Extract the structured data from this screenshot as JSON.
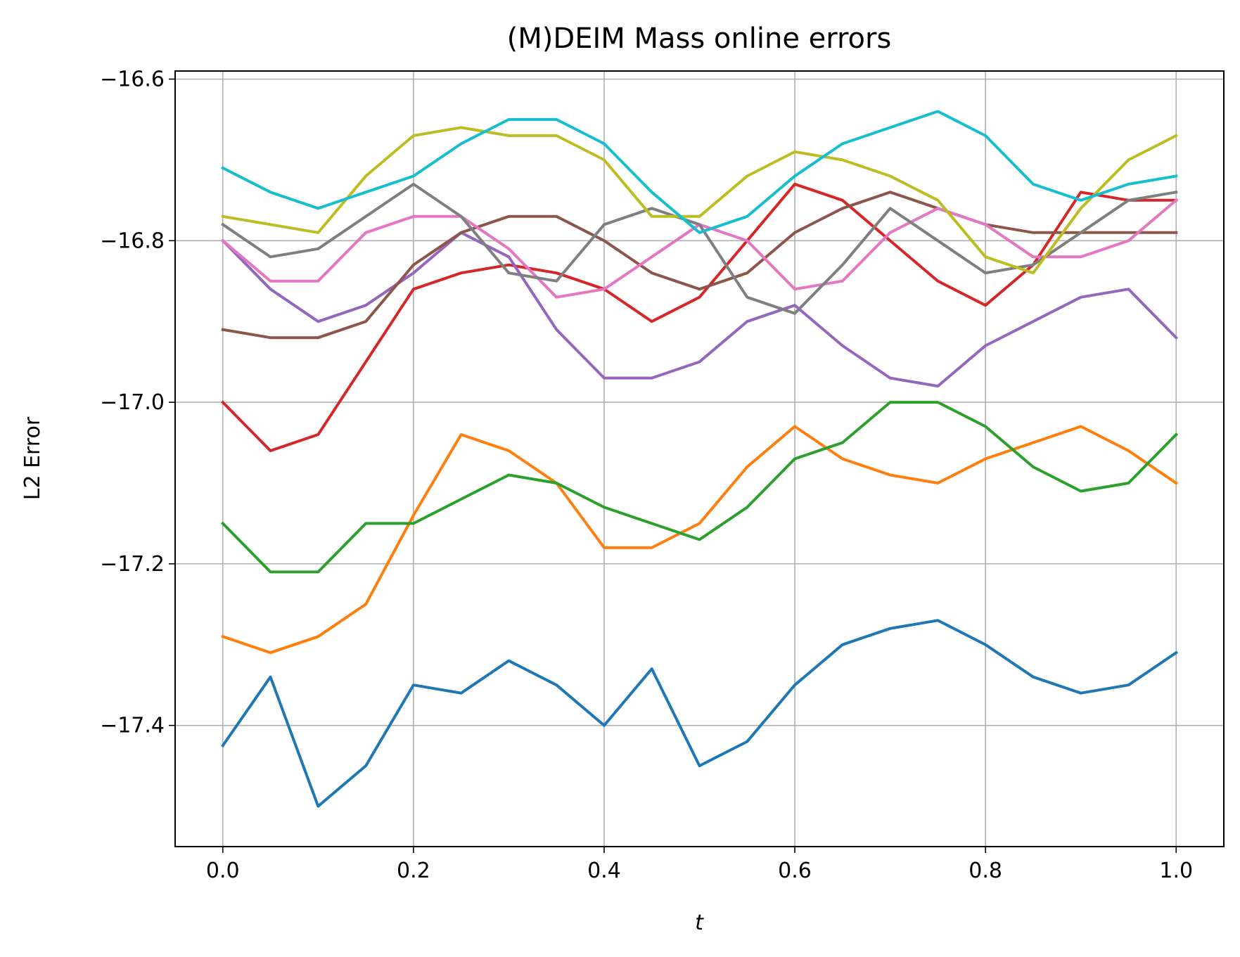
{
  "chart_data": {
    "type": "line",
    "title": "(M)DEIM Mass online errors",
    "xlabel": "t",
    "ylabel": "L2 Error",
    "xlim": [
      -0.05,
      1.05
    ],
    "ylim": [
      -17.55,
      -16.59
    ],
    "xticks": [
      0.0,
      0.2,
      0.4,
      0.6,
      0.8,
      1.0
    ],
    "xtick_labels": [
      "0.0",
      "0.2",
      "0.4",
      "0.6",
      "0.8",
      "1.0"
    ],
    "yticks": [
      -17.4,
      -17.2,
      -17.0,
      -16.8,
      -16.6
    ],
    "ytick_labels": [
      "−17.4",
      "−17.2",
      "−17.0",
      "−16.8",
      "−16.6"
    ],
    "grid": true,
    "x": [
      0.0,
      0.05,
      0.1,
      0.15,
      0.2,
      0.25,
      0.3,
      0.35,
      0.4,
      0.45,
      0.5,
      0.55,
      0.6,
      0.65,
      0.7,
      0.75,
      0.8,
      0.85,
      0.9,
      0.95,
      1.0
    ],
    "series": [
      {
        "color": "#1f77b4",
        "values": [
          -17.425,
          -17.34,
          -17.5,
          -17.45,
          -17.35,
          -17.36,
          -17.32,
          -17.35,
          -17.4,
          -17.33,
          -17.45,
          -17.42,
          -17.35,
          -17.3,
          -17.28,
          -17.27,
          -17.3,
          -17.34,
          -17.36,
          -17.35,
          -17.31
        ]
      },
      {
        "color": "#ff7f0e",
        "values": [
          -17.29,
          -17.31,
          -17.29,
          -17.25,
          -17.14,
          -17.04,
          -17.06,
          -17.1,
          -17.18,
          -17.18,
          -17.15,
          -17.08,
          -17.03,
          -17.07,
          -17.09,
          -17.1,
          -17.07,
          -17.05,
          -17.03,
          -17.06,
          -17.1
        ]
      },
      {
        "color": "#2ca02c",
        "values": [
          -17.15,
          -17.21,
          -17.21,
          -17.15,
          -17.15,
          -17.12,
          -17.09,
          -17.1,
          -17.13,
          -17.15,
          -17.17,
          -17.13,
          -17.07,
          -17.05,
          -17.0,
          -17.0,
          -17.03,
          -17.08,
          -17.11,
          -17.1,
          -17.04
        ]
      },
      {
        "color": "#d62728",
        "values": [
          -17.0,
          -17.06,
          -17.04,
          -16.95,
          -16.86,
          -16.84,
          -16.83,
          -16.84,
          -16.86,
          -16.9,
          -16.87,
          -16.8,
          -16.73,
          -16.75,
          -16.8,
          -16.85,
          -16.88,
          -16.83,
          -16.74,
          -16.75,
          -16.75
        ]
      },
      {
        "color": "#9467bd",
        "values": [
          -16.8,
          -16.86,
          -16.9,
          -16.88,
          -16.84,
          -16.79,
          -16.82,
          -16.91,
          -16.97,
          -16.97,
          -16.95,
          -16.9,
          -16.88,
          -16.93,
          -16.97,
          -16.98,
          -16.93,
          -16.9,
          -16.87,
          -16.86,
          -16.92
        ]
      },
      {
        "color": "#8c564b",
        "values": [
          -16.91,
          -16.92,
          -16.92,
          -16.9,
          -16.83,
          -16.79,
          -16.77,
          -16.77,
          -16.8,
          -16.84,
          -16.86,
          -16.84,
          -16.79,
          -16.76,
          -16.74,
          -16.76,
          -16.78,
          -16.79,
          -16.79,
          -16.79,
          -16.79
        ]
      },
      {
        "color": "#e377c2",
        "values": [
          -16.8,
          -16.85,
          -16.85,
          -16.79,
          -16.77,
          -16.77,
          -16.81,
          -16.87,
          -16.86,
          -16.82,
          -16.78,
          -16.8,
          -16.86,
          -16.85,
          -16.79,
          -16.76,
          -16.78,
          -16.82,
          -16.82,
          -16.8,
          -16.75
        ]
      },
      {
        "color": "#7f7f7f",
        "values": [
          -16.78,
          -16.82,
          -16.81,
          -16.77,
          -16.73,
          -16.77,
          -16.84,
          -16.85,
          -16.78,
          -16.76,
          -16.78,
          -16.87,
          -16.89,
          -16.83,
          -16.76,
          -16.8,
          -16.84,
          -16.83,
          -16.79,
          -16.75,
          -16.74
        ]
      },
      {
        "color": "#bcbd22",
        "values": [
          -16.77,
          -16.78,
          -16.79,
          -16.72,
          -16.67,
          -16.66,
          -16.67,
          -16.67,
          -16.7,
          -16.77,
          -16.77,
          -16.72,
          -16.69,
          -16.7,
          -16.72,
          -16.75,
          -16.82,
          -16.84,
          -16.76,
          -16.7,
          -16.67
        ]
      },
      {
        "color": "#17becf",
        "values": [
          -16.71,
          -16.74,
          -16.76,
          -16.74,
          -16.72,
          -16.68,
          -16.65,
          -16.65,
          -16.68,
          -16.74,
          -16.79,
          -16.77,
          -16.72,
          -16.68,
          -16.66,
          -16.64,
          -16.67,
          -16.73,
          -16.75,
          -16.73,
          -16.72
        ]
      }
    ]
  }
}
